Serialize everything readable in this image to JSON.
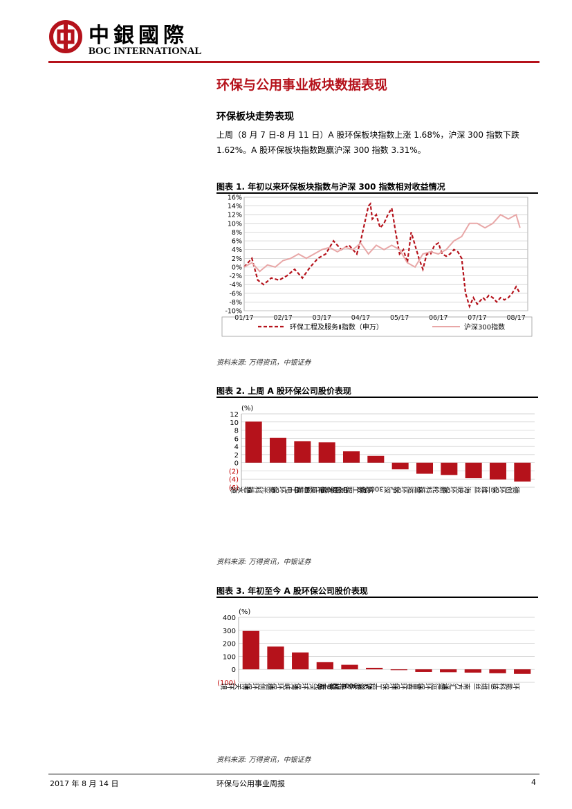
{
  "brand": {
    "name_cn": "中銀國際",
    "name_en": "BOC INTERNATIONAL",
    "color": "#b5121b"
  },
  "section_title": "环保与公用事业板块数据表现",
  "subsection_title": "环保板块走势表现",
  "paragraph": "上周（8 月 7 日-8 月 11 日）A 股环保板块指数上涨 1.68%，沪深 300 指数下跌 1.62%。A 股环保板块指数跑赢沪深 300 指数 3.31%。",
  "figure1": {
    "title": "图表 1. 年初以来环保板块指数与沪深 300 指数相对收益情况",
    "source": "资料来源: 万得资讯，中银证券"
  },
  "figure2": {
    "title": "图表 2. 上周 A 股环保公司股价表现",
    "source": "资料来源: 万得资讯，中银证券"
  },
  "figure3": {
    "title": "图表 3. 年初至今 A 股环保公司股价表现",
    "source": "资料来源: 万得资讯，中银证券"
  },
  "footer": {
    "date": "2017 年 8 月 14 日",
    "report": "环保与公用事业周报",
    "page": "4"
  },
  "chart_data": [
    {
      "type": "line",
      "x_ticks": [
        "01/17",
        "02/17",
        "03/17",
        "04/17",
        "05/17",
        "06/17",
        "07/17",
        "08/17"
      ],
      "y_ticks": [
        "16%",
        "14%",
        "12%",
        "10%",
        "8%",
        "6%",
        "4%",
        "2%",
        "0%",
        "-2%",
        "-4%",
        "-6%",
        "-8%",
        "-10%"
      ],
      "ylim": [
        -10,
        16
      ],
      "grid": true,
      "legend_position": "bottom",
      "series": [
        {
          "name": "环保工程及服务Ⅱ指数（申万）",
          "color": "#b5121b",
          "style": "dashed",
          "x": [
            0,
            0.2,
            0.35,
            0.5,
            0.7,
            0.9,
            1.1,
            1.3,
            1.5,
            1.7,
            1.9,
            2.1,
            2.3,
            2.5,
            2.7,
            2.9,
            3.0,
            3.1,
            3.2,
            3.25,
            3.3,
            3.4,
            3.5,
            3.6,
            3.7,
            3.8,
            3.9,
            4.0,
            4.1,
            4.2,
            4.3,
            4.4,
            4.5,
            4.6,
            4.7,
            4.8,
            4.9,
            5.0,
            5.1,
            5.2,
            5.3,
            5.4,
            5.5,
            5.6,
            5.7,
            5.8,
            5.9,
            6.0,
            6.1,
            6.15,
            6.2,
            6.3,
            6.4,
            6.5,
            6.6,
            6.7,
            6.8,
            6.9,
            7.0,
            7.1
          ],
          "values": [
            0,
            2,
            -3,
            -4,
            -2.5,
            -3,
            -2,
            -0.5,
            -2.5,
            0,
            2,
            3,
            6,
            4,
            5,
            3,
            6,
            10,
            14,
            14.5,
            11,
            12,
            9,
            10,
            12,
            13.5,
            8,
            3,
            4,
            1,
            8,
            5,
            2,
            -0.5,
            3,
            3,
            5,
            5.5,
            3,
            2.5,
            3,
            4,
            3.5,
            2,
            -6,
            -9,
            -7,
            -8.5,
            -7.5,
            -7,
            -7.5,
            -6.5,
            -7,
            -8,
            -7,
            -7.5,
            -7,
            -6,
            -4.5,
            -6
          ]
        },
        {
          "name": "沪深300指数",
          "color": "#e8a7a7",
          "style": "solid",
          "x": [
            0,
            0.2,
            0.4,
            0.6,
            0.8,
            1.0,
            1.2,
            1.4,
            1.6,
            1.8,
            2.0,
            2.2,
            2.4,
            2.6,
            2.8,
            3.0,
            3.2,
            3.4,
            3.6,
            3.8,
            4.0,
            4.2,
            4.4,
            4.6,
            4.8,
            5.0,
            5.2,
            5.4,
            5.6,
            5.8,
            6.0,
            6.2,
            6.4,
            6.6,
            6.8,
            7.0,
            7.1
          ],
          "values": [
            0,
            1,
            -1,
            0.5,
            0,
            1.5,
            2,
            3,
            2,
            3,
            4,
            4.5,
            3.5,
            4.5,
            4,
            5.5,
            3,
            5,
            4,
            5,
            4,
            1,
            0,
            3,
            3.5,
            3,
            4,
            6,
            7,
            10,
            10,
            9,
            10,
            12,
            11,
            12,
            9
          ]
        }
      ]
    },
    {
      "type": "bar",
      "unit_label": "(%)",
      "y_ticks": [
        "12",
        "10",
        "8",
        "6",
        "4",
        "2",
        "0",
        "(2)",
        "(4)",
        "(6)"
      ],
      "ylim": [
        -6,
        12
      ],
      "categories": [
        "碧水源",
        "聚光科技",
        "中电环保",
        "津膜科技",
        "中国天楹",
        "环保工程及服务Ⅱ（申万）",
        "沪深300指数",
        "盛运环保",
        "新纶科技",
        "海峡环保",
        "三维丝",
        "德创环保"
      ],
      "values": [
        10.1,
        6.1,
        5.3,
        5.0,
        2.8,
        1.68,
        -1.62,
        -2.7,
        -3.0,
        -3.8,
        -4.1,
        -4.6
      ],
      "color": "#b5121b"
    },
    {
      "type": "bar",
      "unit_label": "(%)",
      "y_ticks": [
        "400",
        "300",
        "200",
        "100",
        "0",
        "(100)"
      ],
      "ylim": [
        -100,
        400
      ],
      "categories": [
        "博天环境",
        "德创环保",
        "海峡环保",
        "先河环保",
        "中材节能",
        "沪深300指数",
        "环保工程及服务Ⅱ（申万）",
        "富春环保",
        "盛运环保",
        "南方汇通",
        "三维丝",
        "环能科技"
      ],
      "values": [
        295,
        175,
        130,
        55,
        35,
        12,
        -6,
        -20,
        -22,
        -25,
        -30,
        -35
      ],
      "color": "#b5121b"
    }
  ]
}
